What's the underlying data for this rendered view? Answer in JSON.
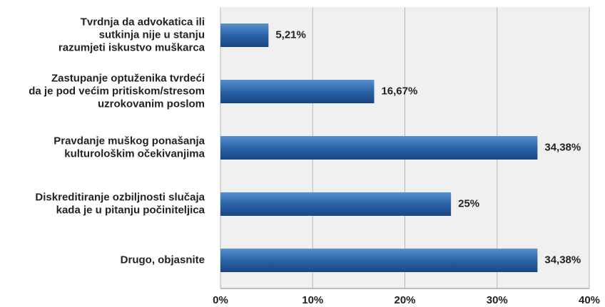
{
  "chart_data": {
    "type": "bar",
    "orientation": "horizontal",
    "categories": [
      [
        "Tvrdnja da advokatica ili",
        "sutkinja nije u stanju",
        "razumjeti iskustvo muškarca"
      ],
      [
        "Zastupanje optuženika tvrdeći",
        "da je pod većim pritiskom/stresom",
        "uzrokovanim poslom"
      ],
      [
        "Pravdanje muškog ponašanja",
        "kulturološkim očekivanjima"
      ],
      [
        "Diskreditiranje ozbiljnosti slučaja",
        "kada je u pitanju počiniteljica"
      ],
      [
        "Drugo, objasnite"
      ]
    ],
    "values": [
      5.21,
      16.67,
      34.38,
      25,
      34.38
    ],
    "value_labels": [
      "5,21%",
      "16,67%",
      "34,38%",
      "25%",
      "34,38%"
    ],
    "color": "#2a63a8",
    "xlim": [
      0,
      40
    ],
    "xticks": [
      {
        "value": 0,
        "label": "0%"
      },
      {
        "value": 10,
        "label": "10%"
      },
      {
        "value": 20,
        "label": "20%"
      },
      {
        "value": 30,
        "label": "30%"
      },
      {
        "value": 40,
        "label": "40%"
      }
    ],
    "grid": true
  }
}
